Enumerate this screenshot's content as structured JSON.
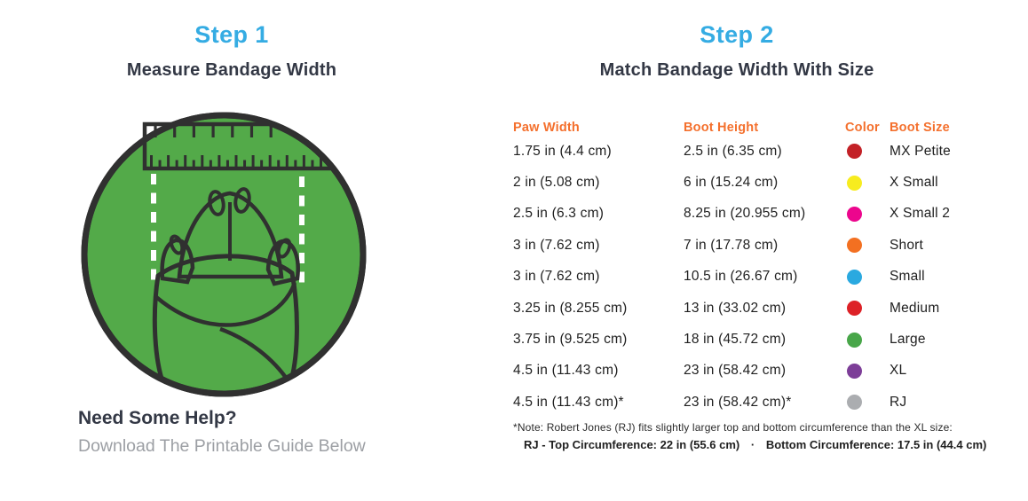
{
  "step1": {
    "title": "Step 1",
    "subtitle": "Measure Bandage Width",
    "help_title": "Need Some Help?",
    "help_subtitle": "Download The Printable Guide Below"
  },
  "step2": {
    "title": "Step 2",
    "subtitle": "Match Bandage Width With Size",
    "table": {
      "headers": {
        "paw_width": "Paw Width",
        "boot_height": "Boot Height",
        "color": "Color",
        "boot_size": "Boot Size"
      },
      "rows": [
        {
          "paw_width": "1.75 in (4.4 cm)",
          "boot_height": "2.5 in (6.35 cm)",
          "color_hex": "#C32127",
          "color_name": "dark-red",
          "boot_size": "MX Petite"
        },
        {
          "paw_width": "2 in (5.08 cm)",
          "boot_height": "6 in (15.24 cm)",
          "color_hex": "#F7EC1F",
          "color_name": "yellow",
          "boot_size": "X Small"
        },
        {
          "paw_width": "2.5 in (6.3 cm)",
          "boot_height": "8.25 in (20.955 cm)",
          "color_hex": "#EC068D",
          "color_name": "magenta",
          "boot_size": "X Small 2"
        },
        {
          "paw_width": "3 in (7.62 cm)",
          "boot_height": "7 in (17.78 cm)",
          "color_hex": "#F37021",
          "color_name": "orange",
          "boot_size": "Short"
        },
        {
          "paw_width": "3 in (7.62 cm)",
          "boot_height": "10.5 in (26.67 cm)",
          "color_hex": "#2AA9E0",
          "color_name": "light-blue",
          "boot_size": "Small"
        },
        {
          "paw_width": "3.25 in (8.255 cm)",
          "boot_height": "13 in (33.02 cm)",
          "color_hex": "#DD2127",
          "color_name": "red",
          "boot_size": "Medium"
        },
        {
          "paw_width": "3.75 in (9.525 cm)",
          "boot_height": "18 in (45.72 cm)",
          "color_hex": "#48A649",
          "color_name": "green",
          "boot_size": "Large"
        },
        {
          "paw_width": "4.5 in (11.43 cm)",
          "boot_height": "23 in (58.42 cm)",
          "color_hex": "#7D3E98",
          "color_name": "purple",
          "boot_size": "XL"
        },
        {
          "paw_width": "4.5 in (11.43 cm)*",
          "boot_height": "23 in (58.42 cm)*",
          "color_hex": "#ABADB0",
          "color_name": "gray",
          "boot_size": "RJ"
        }
      ]
    },
    "footnote": {
      "line1": "*Note: Robert Jones (RJ) fits slightly larger top and bottom circumference than the XL size:",
      "line2_left": "RJ - Top Circumference: 22 in (55.6 cm)",
      "separator": "·",
      "line2_right": "Bottom Circumference: 17.5 in (44.4 cm)"
    }
  },
  "colors": {
    "accent_blue": "#35ACE3",
    "heading_dark": "#333845",
    "table_header_orange": "#F4702D",
    "body_text": "#1F1F1F",
    "muted_gray": "#9C9FA4",
    "illustration_green": "#53AA49",
    "illustration_outline": "#303030",
    "bandage_gray": "#EEEEEE"
  },
  "illustration": {
    "name": "paw-width-measurement-diagram"
  }
}
